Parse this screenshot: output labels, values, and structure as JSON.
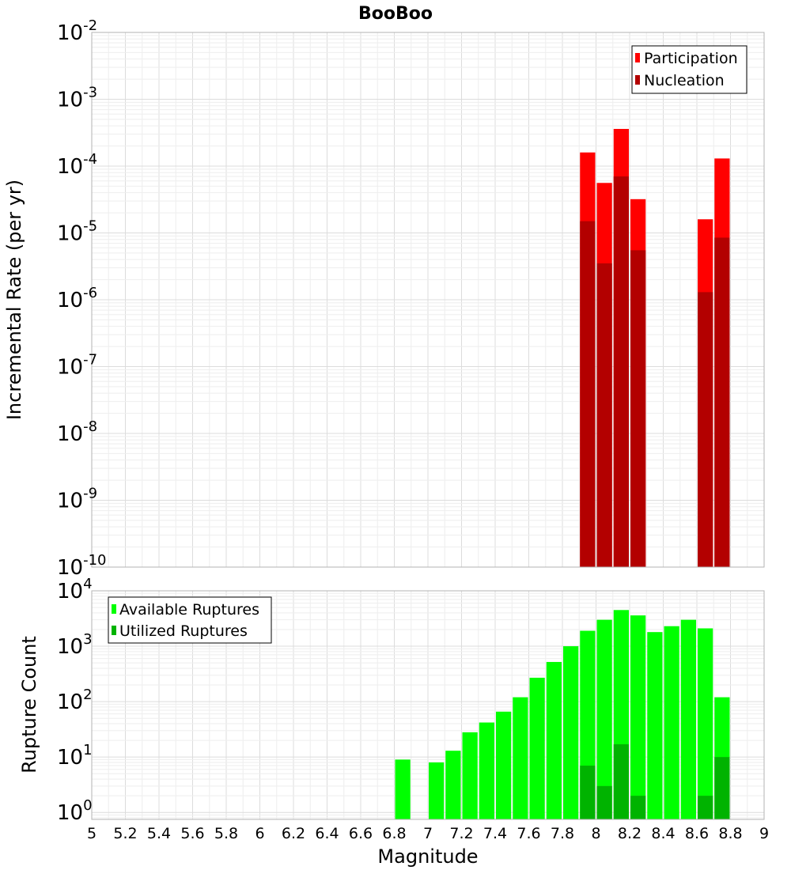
{
  "colors": {
    "participation": "#ff0000",
    "nucleation": "#b30000",
    "available": "#00ff00",
    "utilized": "#00b300",
    "grid": "#e6e6e6",
    "frame": "#b3b3b3"
  },
  "chart_data": [
    {
      "type": "bar",
      "title": "BooBoo",
      "xlabel": "",
      "ylabel": "Incremental Rate (per yr)",
      "xlim": [
        5,
        9
      ],
      "ylim": [
        1e-10,
        0.01
      ],
      "yscale": "log",
      "ytick_labels": [
        {
          "base": "10",
          "exp": "-10",
          "value": 1e-10
        },
        {
          "base": "10",
          "exp": "-9",
          "value": 1e-09
        },
        {
          "base": "10",
          "exp": "-8",
          "value": 1e-08
        },
        {
          "base": "10",
          "exp": "-7",
          "value": 1e-07
        },
        {
          "base": "10",
          "exp": "-6",
          "value": 1e-06
        },
        {
          "base": "10",
          "exp": "-5",
          "value": 1e-05
        },
        {
          "base": "10",
          "exp": "-4",
          "value": 0.0001
        },
        {
          "base": "10",
          "exp": "-3",
          "value": 0.001
        },
        {
          "base": "10",
          "exp": "-2",
          "value": 0.01
        }
      ],
      "legend": {
        "position": "top-right",
        "entries": [
          "Participation",
          "Nucleation"
        ]
      },
      "series": [
        {
          "name": "Participation",
          "x": [
            7.95,
            8.05,
            8.15,
            8.25,
            8.65,
            8.75
          ],
          "values": [
            0.00016,
            5.6e-05,
            0.00036,
            3.2e-05,
            1.6e-05,
            0.00013
          ]
        },
        {
          "name": "Nucleation",
          "x": [
            7.95,
            8.05,
            8.15,
            8.25,
            8.65,
            8.75
          ],
          "values": [
            1.5e-05,
            3.5e-06,
            7e-05,
            5.5e-06,
            1.3e-06,
            8.5e-06
          ]
        }
      ]
    },
    {
      "type": "bar",
      "title": "",
      "xlabel": "Magnitude",
      "ylabel": "Rupture Count",
      "xlim": [
        5,
        9
      ],
      "ylim": [
        0.75,
        10000
      ],
      "yscale": "log",
      "xtick_labels": [
        "5",
        "5.2",
        "5.4",
        "5.6",
        "5.8",
        "6",
        "6.2",
        "6.4",
        "6.6",
        "6.8",
        "7",
        "7.2",
        "7.4",
        "7.6",
        "7.8",
        "8",
        "8.2",
        "8.4",
        "8.6",
        "8.8",
        "9"
      ],
      "ytick_labels": [
        {
          "base": "10",
          "exp": "0",
          "value": 1
        },
        {
          "base": "10",
          "exp": "1",
          "value": 10
        },
        {
          "base": "10",
          "exp": "2",
          "value": 100
        },
        {
          "base": "10",
          "exp": "3",
          "value": 1000
        },
        {
          "base": "10",
          "exp": "4",
          "value": 10000
        }
      ],
      "legend": {
        "position": "top-left",
        "entries": [
          "Available Ruptures",
          "Utilized Ruptures"
        ]
      },
      "series": [
        {
          "name": "Available Ruptures",
          "x": [
            6.85,
            7.05,
            7.15,
            7.25,
            7.35,
            7.45,
            7.55,
            7.65,
            7.75,
            7.85,
            7.95,
            8.05,
            8.15,
            8.25,
            8.35,
            8.45,
            8.55,
            8.65,
            8.75
          ],
          "values": [
            9,
            8,
            13,
            28,
            42,
            66,
            120,
            270,
            520,
            1000,
            1900,
            3000,
            4500,
            3600,
            1800,
            2300,
            3000,
            2100,
            120
          ]
        },
        {
          "name": "Utilized Ruptures",
          "x": [
            7.95,
            8.05,
            8.15,
            8.25,
            8.65,
            8.75
          ],
          "values": [
            7,
            3,
            17,
            2,
            2,
            10
          ]
        }
      ]
    }
  ]
}
